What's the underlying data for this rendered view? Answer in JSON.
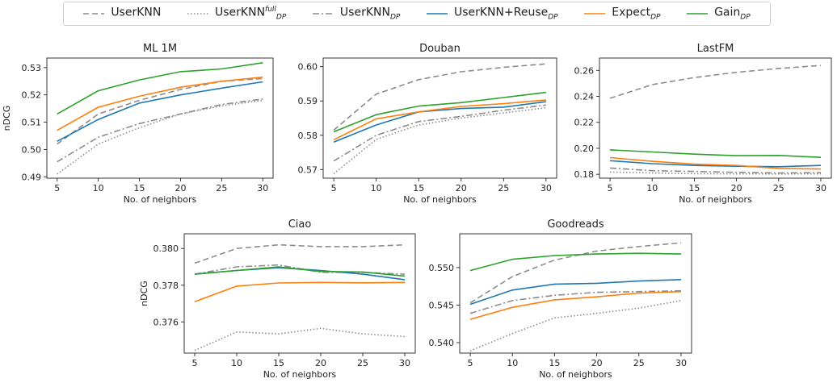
{
  "legend": [
    {
      "key": "userknn",
      "base": "UserKNN",
      "sub": "",
      "sup": ""
    },
    {
      "key": "userknn_full",
      "base": "UserKNN",
      "sub": "DP",
      "sup": "full"
    },
    {
      "key": "userknn_dp",
      "base": "UserKNN",
      "sub": "DP",
      "sup": ""
    },
    {
      "key": "reuse",
      "base": "UserKNN+Reuse",
      "sub": "DP",
      "sup": ""
    },
    {
      "key": "expect",
      "base": "Expect",
      "sub": "DP",
      "sup": ""
    },
    {
      "key": "gain",
      "base": "Gain",
      "sub": "DP",
      "sup": ""
    }
  ],
  "series_style": {
    "userknn": {
      "color": "#8c8c8c",
      "dash": "7,4"
    },
    "userknn_full": {
      "color": "#8c8c8c",
      "dash": "1.5,2.5"
    },
    "userknn_dp": {
      "color": "#8c8c8c",
      "dash": "8,3,2,3"
    },
    "reuse": {
      "color": "#1f77b4",
      "dash": ""
    },
    "expect": {
      "color": "#ff7f0e",
      "dash": ""
    },
    "gain": {
      "color": "#2ca02c",
      "dash": ""
    }
  },
  "chart_data": [
    {
      "type": "line",
      "title": "ML 1M",
      "xlabel": "No. of neighbors",
      "ylabel": "nDCG",
      "x": [
        5,
        10,
        15,
        20,
        25,
        30
      ],
      "xlim": [
        3.75,
        31.25
      ],
      "ylim": [
        0.4895,
        0.5335
      ],
      "yticks": [
        0.49,
        0.5,
        0.51,
        0.52,
        0.53
      ],
      "ytick_labels": [
        "0.49",
        "0.50",
        "0.51",
        "0.52",
        "0.53"
      ],
      "series": [
        {
          "key": "userknn",
          "values": [
            0.502,
            0.513,
            0.518,
            0.522,
            0.525,
            0.526
          ]
        },
        {
          "key": "userknn_full",
          "values": [
            0.491,
            0.502,
            0.508,
            0.513,
            0.516,
            0.518
          ]
        },
        {
          "key": "userknn_dp",
          "values": [
            0.4955,
            0.5045,
            0.5095,
            0.513,
            0.5165,
            0.5185
          ]
        },
        {
          "key": "reuse",
          "values": [
            0.503,
            0.511,
            0.517,
            0.52,
            0.5225,
            0.5248
          ]
        },
        {
          "key": "expect",
          "values": [
            0.507,
            0.5155,
            0.5195,
            0.5228,
            0.525,
            0.5265
          ]
        },
        {
          "key": "gain",
          "values": [
            0.513,
            0.5215,
            0.5255,
            0.5285,
            0.5295,
            0.5318
          ]
        }
      ]
    },
    {
      "type": "line",
      "title": "Douban",
      "xlabel": "No. of neighbors",
      "ylabel": "",
      "x": [
        5,
        10,
        15,
        20,
        25,
        30
      ],
      "xlim": [
        3.75,
        31.25
      ],
      "ylim": [
        0.5675,
        0.6025
      ],
      "yticks": [
        0.57,
        0.58,
        0.59,
        0.6
      ],
      "ytick_labels": [
        "0.57",
        "0.58",
        "0.59",
        "0.60"
      ],
      "series": [
        {
          "key": "userknn",
          "values": [
            0.5815,
            0.592,
            0.5962,
            0.5985,
            0.5998,
            0.6008
          ]
        },
        {
          "key": "userknn_full",
          "values": [
            0.5688,
            0.5788,
            0.583,
            0.585,
            0.5865,
            0.588
          ]
        },
        {
          "key": "userknn_dp",
          "values": [
            0.5725,
            0.58,
            0.584,
            0.5855,
            0.5873,
            0.5888
          ]
        },
        {
          "key": "reuse",
          "values": [
            0.578,
            0.583,
            0.5868,
            0.5878,
            0.5882,
            0.5898
          ]
        },
        {
          "key": "expect",
          "values": [
            0.5787,
            0.5848,
            0.5868,
            0.5884,
            0.5892,
            0.5903
          ]
        },
        {
          "key": "gain",
          "values": [
            0.581,
            0.586,
            0.5885,
            0.5895,
            0.591,
            0.5925
          ]
        }
      ]
    },
    {
      "type": "line",
      "title": "LastFM",
      "xlabel": "No. of neighbors",
      "ylabel": "",
      "x": [
        5,
        10,
        15,
        20,
        25,
        30
      ],
      "xlim": [
        3.75,
        31.25
      ],
      "ylim": [
        0.177,
        0.2695
      ],
      "yticks": [
        0.18,
        0.2,
        0.22,
        0.24,
        0.26
      ],
      "ytick_labels": [
        "0.18",
        "0.20",
        "0.22",
        "0.24",
        "0.26"
      ],
      "series": [
        {
          "key": "userknn",
          "values": [
            0.2385,
            0.249,
            0.2545,
            0.2585,
            0.2615,
            0.2638
          ]
        },
        {
          "key": "userknn_full",
          "values": [
            0.1817,
            0.181,
            0.1805,
            0.1803,
            0.1802,
            0.1803
          ]
        },
        {
          "key": "userknn_dp",
          "values": [
            0.1848,
            0.1828,
            0.1822,
            0.1815,
            0.181,
            0.1812
          ]
        },
        {
          "key": "reuse",
          "values": [
            0.1905,
            0.1882,
            0.1868,
            0.1862,
            0.1858,
            0.1868
          ]
        },
        {
          "key": "expect",
          "values": [
            0.1928,
            0.19,
            0.1878,
            0.1868,
            0.1845,
            0.184
          ]
        },
        {
          "key": "gain",
          "values": [
            0.1988,
            0.1972,
            0.1955,
            0.1943,
            0.1945,
            0.193
          ]
        }
      ]
    },
    {
      "type": "line",
      "title": "Ciao",
      "xlabel": "No. of neighbors",
      "ylabel": "nDCG",
      "x": [
        5,
        10,
        15,
        20,
        25,
        30
      ],
      "xlim": [
        3.75,
        31.25
      ],
      "ylim": [
        0.3743,
        0.3808
      ],
      "yticks": [
        0.376,
        0.378,
        0.38
      ],
      "ytick_labels": [
        "0.376",
        "0.378",
        "0.380"
      ],
      "series": [
        {
          "key": "userknn",
          "values": [
            0.3792,
            0.38,
            0.3802,
            0.3801,
            0.3801,
            0.3802
          ]
        },
        {
          "key": "userknn_full",
          "values": [
            0.37445,
            0.37545,
            0.37535,
            0.37565,
            0.37535,
            0.3752
          ]
        },
        {
          "key": "userknn_dp",
          "values": [
            0.3786,
            0.379,
            0.3791,
            0.3787,
            0.3787,
            0.3786
          ]
        },
        {
          "key": "reuse",
          "values": [
            0.3786,
            0.3788,
            0.37895,
            0.3788,
            0.3786,
            0.3783
          ]
        },
        {
          "key": "expect",
          "values": [
            0.3771,
            0.37795,
            0.37812,
            0.37815,
            0.37813,
            0.37815
          ]
        },
        {
          "key": "gain",
          "values": [
            0.3786,
            0.3788,
            0.379,
            0.37875,
            0.37872,
            0.3785
          ]
        }
      ]
    },
    {
      "type": "line",
      "title": "Goodreads",
      "xlabel": "No. of neighbors",
      "ylabel": "",
      "x": [
        5,
        10,
        15,
        20,
        25,
        30
      ],
      "xlim": [
        3.75,
        31.25
      ],
      "ylim": [
        0.5386,
        0.5545
      ],
      "yticks": [
        0.54,
        0.545,
        0.55
      ],
      "ytick_labels": [
        "0.540",
        "0.545",
        "0.550"
      ],
      "series": [
        {
          "key": "userknn",
          "values": [
            0.5453,
            0.5488,
            0.551,
            0.5522,
            0.5528,
            0.5533
          ]
        },
        {
          "key": "userknn_full",
          "values": [
            0.5389,
            0.5412,
            0.5433,
            0.5439,
            0.5446,
            0.5456
          ]
        },
        {
          "key": "userknn_dp",
          "values": [
            0.5439,
            0.5456,
            0.5463,
            0.5467,
            0.5468,
            0.5469
          ]
        },
        {
          "key": "reuse",
          "values": [
            0.5451,
            0.547,
            0.5478,
            0.5479,
            0.5482,
            0.5484
          ]
        },
        {
          "key": "expect",
          "values": [
            0.5431,
            0.5447,
            0.5457,
            0.5461,
            0.5466,
            0.5468
          ]
        },
        {
          "key": "gain",
          "values": [
            0.5496,
            0.5511,
            0.5516,
            0.5518,
            0.5519,
            0.5518
          ]
        }
      ]
    }
  ]
}
